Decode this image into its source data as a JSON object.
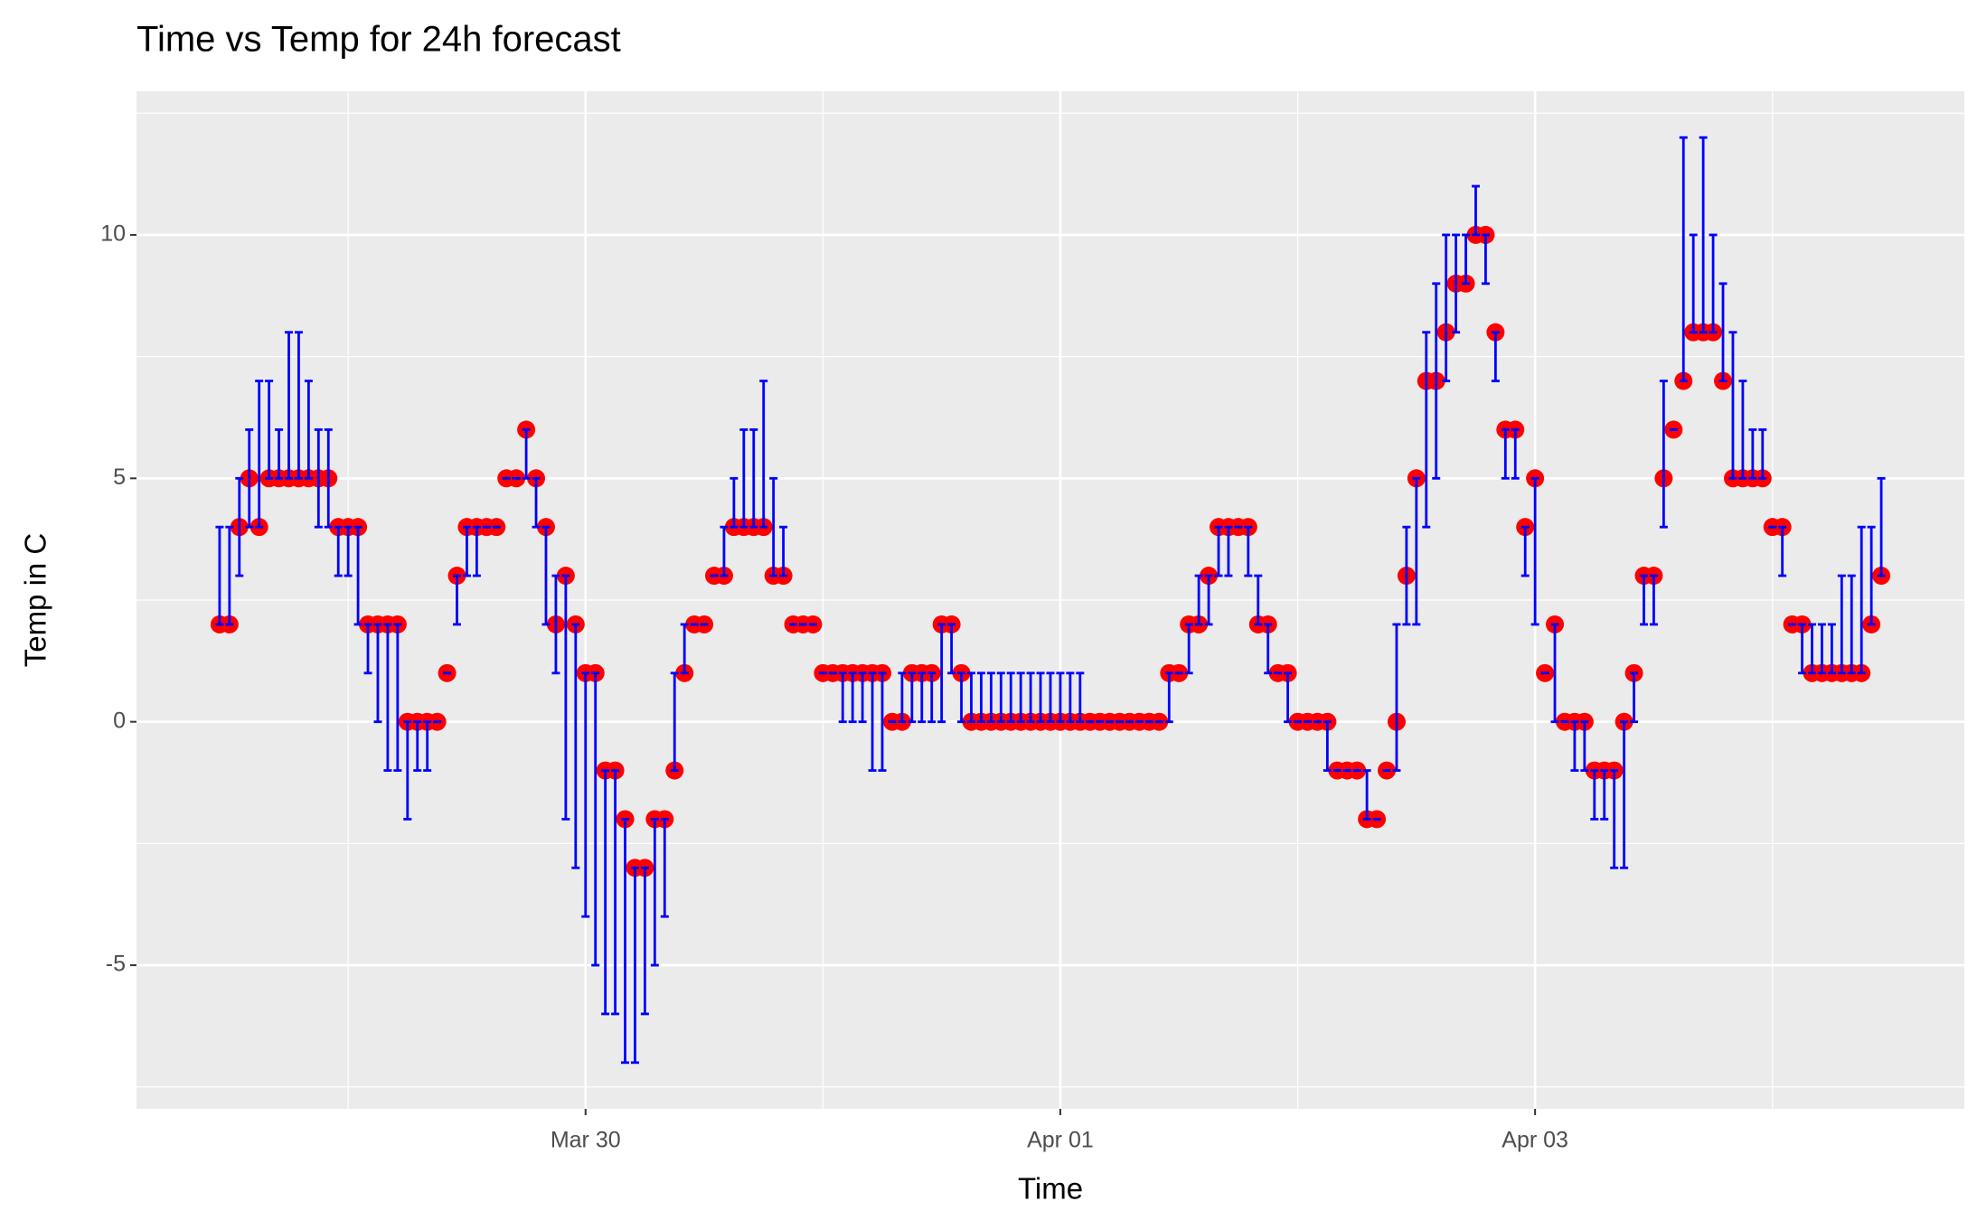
{
  "chart_data": {
    "type": "errorbar-scatter",
    "title": "Time vs Temp for 24h forecast",
    "x_label": "Time",
    "y_label": "Temp in C",
    "x": [
      "Mar 28 11:00",
      "Mar 28 12:00",
      "Mar 28 13:00",
      "Mar 28 14:00",
      "Mar 28 15:00",
      "Mar 28 16:00",
      "Mar 28 17:00",
      "Mar 28 18:00",
      "Mar 28 19:00",
      "Mar 28 20:00",
      "Mar 28 21:00",
      "Mar 28 22:00",
      "Mar 28 23:00",
      "Mar 29 00:00",
      "Mar 29 01:00",
      "Mar 29 02:00",
      "Mar 29 03:00",
      "Mar 29 04:00",
      "Mar 29 05:00",
      "Mar 29 06:00",
      "Mar 29 07:00",
      "Mar 29 08:00",
      "Mar 29 09:00",
      "Mar 29 10:00",
      "Mar 29 11:00",
      "Mar 29 12:00",
      "Mar 29 13:00",
      "Mar 29 14:00",
      "Mar 29 15:00",
      "Mar 29 16:00",
      "Mar 29 17:00",
      "Mar 29 18:00",
      "Mar 29 19:00",
      "Mar 29 20:00",
      "Mar 29 21:00",
      "Mar 29 22:00",
      "Mar 29 23:00",
      "Mar 30 00:00",
      "Mar 30 01:00",
      "Mar 30 02:00",
      "Mar 30 03:00",
      "Mar 30 04:00",
      "Mar 30 05:00",
      "Mar 30 06:00",
      "Mar 30 07:00",
      "Mar 30 08:00",
      "Mar 30 09:00",
      "Mar 30 10:00",
      "Mar 30 11:00",
      "Mar 30 12:00",
      "Mar 30 13:00",
      "Mar 30 14:00",
      "Mar 30 15:00",
      "Mar 30 16:00",
      "Mar 30 17:00",
      "Mar 30 18:00",
      "Mar 30 19:00",
      "Mar 30 20:00",
      "Mar 30 21:00",
      "Mar 30 22:00",
      "Mar 30 23:00",
      "Mar 31 00:00",
      "Mar 31 01:00",
      "Mar 31 02:00",
      "Mar 31 03:00",
      "Mar 31 04:00",
      "Mar 31 05:00",
      "Mar 31 06:00",
      "Mar 31 07:00",
      "Mar 31 08:00",
      "Mar 31 09:00",
      "Mar 31 10:00",
      "Mar 31 11:00",
      "Mar 31 12:00",
      "Mar 31 13:00",
      "Mar 31 14:00",
      "Mar 31 15:00",
      "Mar 31 16:00",
      "Mar 31 17:00",
      "Mar 31 18:00",
      "Mar 31 19:00",
      "Mar 31 20:00",
      "Mar 31 21:00",
      "Mar 31 22:00",
      "Mar 31 23:00",
      "Apr 01 00:00",
      "Apr 01 01:00",
      "Apr 01 02:00",
      "Apr 01 03:00",
      "Apr 01 04:00",
      "Apr 01 05:00",
      "Apr 01 06:00",
      "Apr 01 07:00",
      "Apr 01 08:00",
      "Apr 01 09:00",
      "Apr 01 10:00",
      "Apr 01 11:00",
      "Apr 01 12:00",
      "Apr 01 13:00",
      "Apr 01 14:00",
      "Apr 01 15:00",
      "Apr 01 16:00",
      "Apr 01 17:00",
      "Apr 01 18:00",
      "Apr 01 19:00",
      "Apr 01 20:00",
      "Apr 01 21:00",
      "Apr 01 22:00",
      "Apr 01 23:00",
      "Apr 02 00:00",
      "Apr 02 01:00",
      "Apr 02 02:00",
      "Apr 02 03:00",
      "Apr 02 04:00",
      "Apr 02 05:00",
      "Apr 02 06:00",
      "Apr 02 07:00",
      "Apr 02 08:00",
      "Apr 02 09:00",
      "Apr 02 10:00",
      "Apr 02 11:00",
      "Apr 02 12:00",
      "Apr 02 13:00",
      "Apr 02 14:00",
      "Apr 02 15:00",
      "Apr 02 16:00",
      "Apr 02 17:00",
      "Apr 02 18:00",
      "Apr 02 19:00",
      "Apr 02 20:00",
      "Apr 02 21:00",
      "Apr 02 22:00",
      "Apr 02 23:00",
      "Apr 03 00:00",
      "Apr 03 01:00",
      "Apr 03 02:00",
      "Apr 03 03:00",
      "Apr 03 04:00",
      "Apr 03 05:00",
      "Apr 03 06:00",
      "Apr 03 07:00",
      "Apr 03 08:00",
      "Apr 03 09:00",
      "Apr 03 10:00",
      "Apr 03 11:00",
      "Apr 03 12:00",
      "Apr 03 13:00",
      "Apr 03 14:00",
      "Apr 03 15:00",
      "Apr 03 16:00",
      "Apr 03 17:00",
      "Apr 03 18:00",
      "Apr 03 19:00",
      "Apr 03 20:00",
      "Apr 03 21:00",
      "Apr 03 22:00",
      "Apr 03 23:00",
      "Apr 04 00:00",
      "Apr 04 01:00",
      "Apr 04 02:00",
      "Apr 04 03:00",
      "Apr 04 04:00",
      "Apr 04 05:00",
      "Apr 04 06:00",
      "Apr 04 07:00",
      "Apr 04 08:00",
      "Apr 04 09:00",
      "Apr 04 10:00",
      "Apr 04 11:00"
    ],
    "values": [
      2,
      2,
      4,
      5,
      4,
      5,
      5,
      5,
      5,
      5,
      5,
      5,
      4,
      4,
      4,
      2,
      2,
      2,
      2,
      0,
      0,
      0,
      0,
      1,
      3,
      4,
      4,
      4,
      4,
      5,
      5,
      6,
      5,
      4,
      2,
      3,
      2,
      1,
      1,
      -1,
      -1,
      -2,
      -3,
      -3,
      -2,
      -2,
      -1,
      1,
      2,
      2,
      3,
      3,
      4,
      4,
      4,
      4,
      3,
      3,
      2,
      2,
      2,
      1,
      1,
      1,
      1,
      1,
      1,
      1,
      0,
      0,
      1,
      1,
      1,
      2,
      2,
      1,
      0,
      0,
      0,
      0,
      0,
      0,
      0,
      0,
      0,
      0,
      0,
      0,
      0,
      0,
      0,
      0,
      0,
      0,
      0,
      0,
      1,
      1,
      2,
      2,
      3,
      4,
      4,
      4,
      4,
      2,
      2,
      1,
      1,
      0,
      0,
      0,
      0,
      -1,
      -1,
      -1,
      -2,
      -2,
      -1,
      0,
      3,
      5,
      7,
      7,
      8,
      9,
      9,
      10,
      10,
      8,
      6,
      6,
      4,
      5,
      1,
      2,
      0,
      0,
      0,
      -1,
      -1,
      -1,
      0,
      1,
      3,
      3,
      5,
      6,
      7,
      8,
      8,
      8,
      7,
      5,
      5,
      5,
      5,
      4,
      4,
      2,
      2,
      1,
      1,
      1,
      1,
      1,
      1,
      2,
      3
    ],
    "ymin": [
      2,
      2,
      3,
      4,
      4,
      5,
      5,
      5,
      5,
      5,
      4,
      4,
      3,
      3,
      2,
      1,
      0,
      -1,
      -1,
      -2,
      -1,
      -1,
      0,
      1,
      2,
      3,
      3,
      4,
      4,
      5,
      5,
      5,
      4,
      2,
      1,
      -2,
      -3,
      -4,
      -5,
      -6,
      -6,
      -7,
      -7,
      -6,
      -5,
      -4,
      -1,
      1,
      2,
      2,
      3,
      3,
      4,
      4,
      4,
      4,
      3,
      3,
      2,
      2,
      2,
      1,
      1,
      0,
      0,
      0,
      -1,
      -1,
      0,
      0,
      0,
      0,
      0,
      0,
      1,
      0,
      0,
      0,
      0,
      0,
      0,
      0,
      0,
      0,
      0,
      0,
      0,
      0,
      0,
      0,
      0,
      0,
      0,
      0,
      0,
      0,
      0,
      1,
      1,
      2,
      2,
      3,
      3,
      4,
      3,
      2,
      1,
      1,
      0,
      0,
      0,
      0,
      -1,
      -1,
      -1,
      -1,
      -2,
      -2,
      -1,
      -1,
      2,
      2,
      4,
      5,
      7,
      8,
      9,
      10,
      9,
      7,
      5,
      5,
      3,
      2,
      1,
      0,
      0,
      -1,
      -1,
      -2,
      -2,
      -3,
      -3,
      0,
      2,
      2,
      4,
      6,
      7,
      8,
      8,
      8,
      7,
      5,
      5,
      5,
      5,
      4,
      3,
      2,
      1,
      1,
      1,
      1,
      1,
      1,
      1,
      2,
      3
    ],
    "ymax": [
      4,
      4,
      5,
      6,
      7,
      7,
      6,
      8,
      8,
      7,
      6,
      6,
      4,
      4,
      4,
      2,
      2,
      2,
      2,
      0,
      0,
      0,
      0,
      1,
      3,
      4,
      4,
      4,
      4,
      5,
      5,
      6,
      5,
      4,
      3,
      3,
      2,
      1,
      1,
      -1,
      -1,
      -2,
      -3,
      -3,
      -2,
      -2,
      1,
      2,
      2,
      2,
      3,
      4,
      5,
      6,
      6,
      7,
      5,
      4,
      2,
      2,
      2,
      1,
      1,
      1,
      1,
      1,
      1,
      1,
      0,
      1,
      1,
      1,
      1,
      2,
      2,
      1,
      1,
      1,
      1,
      1,
      1,
      1,
      1,
      1,
      1,
      1,
      1,
      1,
      0,
      0,
      0,
      0,
      0,
      0,
      0,
      0,
      1,
      1,
      2,
      3,
      3,
      4,
      4,
      4,
      4,
      3,
      2,
      1,
      1,
      0,
      0,
      0,
      0,
      -1,
      -1,
      -1,
      -1,
      -2,
      -1,
      2,
      4,
      5,
      8,
      9,
      10,
      10,
      10,
      11,
      10,
      8,
      6,
      6,
      4,
      5,
      1,
      2,
      0,
      0,
      0,
      -1,
      -1,
      -1,
      0,
      1,
      3,
      3,
      7,
      6,
      12,
      10,
      12,
      10,
      9,
      8,
      7,
      6,
      6,
      4,
      4,
      2,
      2,
      2,
      2,
      2,
      3,
      3,
      4,
      4,
      5
    ],
    "point_color": "#ff0000",
    "errorbar_color": "#0000ff",
    "xlim": [
      "Mar 28 02:36",
      "Apr 04 19:24"
    ],
    "xticks": [
      "Mar 30",
      "Apr 01",
      "Apr 03"
    ],
    "ylim": [
      -7.95,
      12.95
    ],
    "yticks": [
      -5,
      0,
      5,
      10
    ],
    "grid": true
  }
}
